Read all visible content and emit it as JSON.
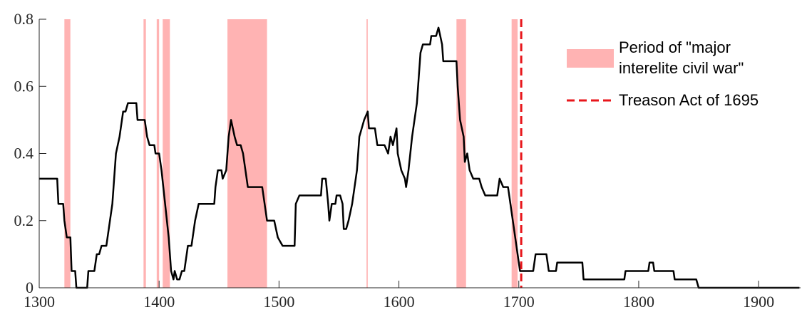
{
  "chart_data": {
    "type": "line",
    "x": [
      1300,
      1315,
      1316,
      1320,
      1321,
      1323,
      1326,
      1327,
      1330,
      1331,
      1340,
      1341,
      1346,
      1348,
      1350,
      1352,
      1356,
      1358,
      1361,
      1362,
      1364,
      1367,
      1370,
      1372,
      1374,
      1381,
      1382,
      1388,
      1390,
      1392,
      1396,
      1397,
      1400,
      1402,
      1405,
      1408,
      1410,
      1412,
      1413,
      1415,
      1417,
      1419,
      1421,
      1423,
      1424,
      1427,
      1428,
      1430,
      1433,
      1446,
      1447,
      1449,
      1452,
      1453,
      1456,
      1458,
      1460,
      1463,
      1465,
      1468,
      1470,
      1472,
      1474,
      1486,
      1488,
      1490,
      1496,
      1499,
      1503,
      1513,
      1514,
      1517,
      1535,
      1536,
      1539,
      1541,
      1542,
      1544,
      1547,
      1548,
      1551,
      1553,
      1554,
      1556,
      1558,
      1561,
      1563,
      1565,
      1567,
      1569,
      1571,
      1574,
      1575,
      1580,
      1582,
      1588,
      1591,
      1593,
      1595,
      1598,
      1599,
      1602,
      1605,
      1606,
      1608,
      1611,
      1615,
      1618,
      1620,
      1626,
      1627,
      1631,
      1633,
      1636,
      1637,
      1648,
      1649,
      1651,
      1654,
      1655,
      1657,
      1659,
      1662,
      1667,
      1669,
      1672,
      1682,
      1684,
      1687,
      1691,
      1693,
      1695,
      1697,
      1699,
      1701,
      1712,
      1714,
      1723,
      1725,
      1731,
      1732,
      1753,
      1754,
      1788,
      1789,
      1808,
      1809,
      1812,
      1813,
      1829,
      1830,
      1848,
      1850,
      1934
    ],
    "series": [
      {
        "color": "#000000",
        "values": [
          0.325,
          0.325,
          0.25,
          0.25,
          0.2,
          0.15,
          0.15,
          0.05,
          0.05,
          0,
          0,
          0.05,
          0.05,
          0.1,
          0.1,
          0.125,
          0.125,
          0.175,
          0.25,
          0.3,
          0.4,
          0.45,
          0.525,
          0.525,
          0.55,
          0.55,
          0.5,
          0.5,
          0.45,
          0.425,
          0.425,
          0.4,
          0.4,
          0.35,
          0.25,
          0.15,
          0.05,
          0.025,
          0.05,
          0.025,
          0.025,
          0.05,
          0.05,
          0.1,
          0.125,
          0.125,
          0.15,
          0.2,
          0.25,
          0.25,
          0.3,
          0.35,
          0.35,
          0.325,
          0.35,
          0.45,
          0.5,
          0.45,
          0.425,
          0.425,
          0.4,
          0.35,
          0.3,
          0.3,
          0.25,
          0.2,
          0.2,
          0.15,
          0.125,
          0.125,
          0.25,
          0.275,
          0.275,
          0.325,
          0.325,
          0.25,
          0.2,
          0.25,
          0.25,
          0.275,
          0.275,
          0.25,
          0.175,
          0.175,
          0.2,
          0.25,
          0.3,
          0.35,
          0.45,
          0.475,
          0.5,
          0.525,
          0.475,
          0.475,
          0.425,
          0.425,
          0.4,
          0.45,
          0.425,
          0.475,
          0.4,
          0.35,
          0.325,
          0.3,
          0.35,
          0.45,
          0.55,
          0.7,
          0.725,
          0.725,
          0.75,
          0.75,
          0.775,
          0.725,
          0.675,
          0.675,
          0.6,
          0.5,
          0.45,
          0.375,
          0.4,
          0.35,
          0.325,
          0.325,
          0.3,
          0.275,
          0.275,
          0.325,
          0.3,
          0.3,
          0.25,
          0.2,
          0.15,
          0.1,
          0.05,
          0.05,
          0.1,
          0.1,
          0.05,
          0.05,
          0.075,
          0.075,
          0.025,
          0.025,
          0.05,
          0.05,
          0.075,
          0.075,
          0.05,
          0.05,
          0.025,
          0.025,
          0,
          0
        ]
      }
    ],
    "shaded_periods": {
      "name": "Period of \"major interelite civil war\"",
      "color": "#ffb3b3",
      "ranges": [
        [
          1321,
          1326
        ],
        [
          1387,
          1389
        ],
        [
          1398,
          1400
        ],
        [
          1403,
          1409
        ],
        [
          1457,
          1490
        ],
        [
          1573,
          1574
        ],
        [
          1648,
          1656
        ],
        [
          1694,
          1699
        ]
      ]
    },
    "reference_line": {
      "name": "Treason Act of 1695",
      "color": "#e8161b",
      "x": 1702
    },
    "xlim": [
      1300,
      1935
    ],
    "xticks": [
      1300,
      1400,
      1500,
      1600,
      1700,
      1800,
      1900
    ],
    "ylim": [
      0,
      0.8
    ],
    "yticks": [
      0,
      0.2,
      0.4,
      0.6,
      0.8
    ],
    "legend": "upper right"
  }
}
